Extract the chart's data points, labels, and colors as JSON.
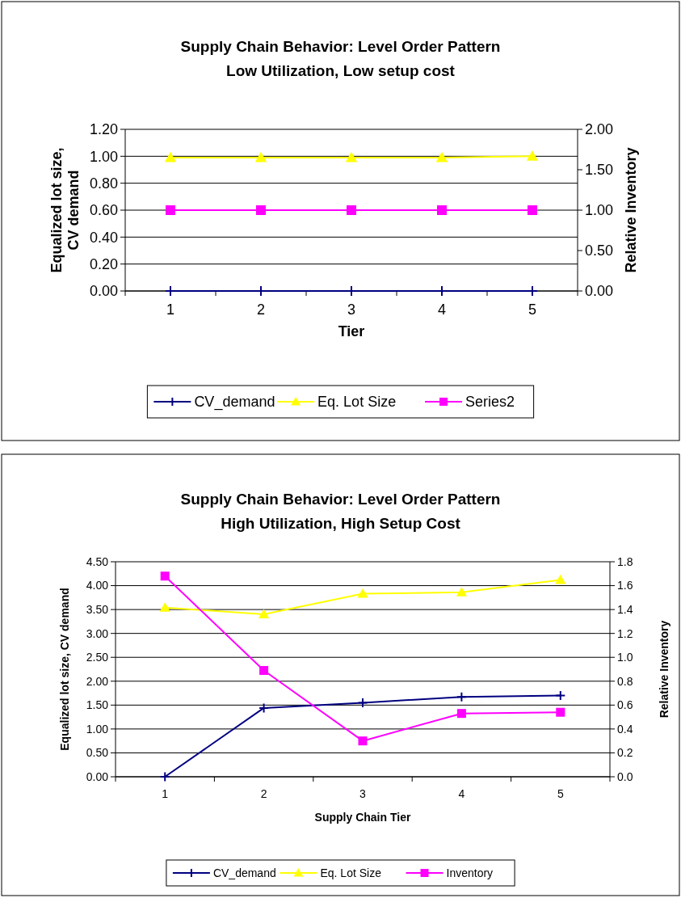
{
  "chart_data": [
    {
      "type": "line",
      "title": "Supply Chain Behavior: Level Order Pattern",
      "subtitle": "Low Utilization, Low setup cost",
      "xlabel": "Tier",
      "ylabel": "Equalized lot size, CV demand",
      "y2label": "Relative Inventory",
      "categories": [
        "1",
        "2",
        "3",
        "4",
        "5"
      ],
      "series": [
        {
          "name": "CV_demand",
          "color": "#000080",
          "marker": "cross",
          "values": [
            0,
            0,
            0,
            0,
            0
          ]
        },
        {
          "name": "Eq. Lot Size",
          "color": "#ffff00",
          "marker": "triangle",
          "values": [
            0.99,
            0.99,
            0.99,
            0.99,
            1.0
          ]
        },
        {
          "name": "Series2",
          "color": "#ff00ff",
          "marker": "square",
          "axis": "y2",
          "values": [
            1.0,
            1.0,
            1.0,
            1.0,
            1.0
          ]
        }
      ],
      "ylim": [
        0,
        1.2
      ],
      "yticks": [
        {
          "value": 0,
          "label": "0.00"
        },
        {
          "value": 0.2,
          "label": "0.20"
        },
        {
          "value": 0.4,
          "label": "0.40"
        },
        {
          "value": 0.6,
          "label": "0.60"
        },
        {
          "value": 0.8,
          "label": "0.80"
        },
        {
          "value": 1,
          "label": "1.00"
        },
        {
          "value": 1.2,
          "label": "1.20"
        }
      ],
      "y2lim": [
        0,
        2
      ],
      "y2ticks": [
        {
          "value": 0,
          "label": "0.00"
        },
        {
          "value": 0.5,
          "label": "0.50"
        },
        {
          "value": 1,
          "label": "1.00"
        },
        {
          "value": 1.5,
          "label": "1.50"
        },
        {
          "value": 2,
          "label": "2.00"
        }
      ],
      "grid": "y",
      "legend": "bottom"
    },
    {
      "type": "line",
      "title": "Supply Chain Behavior: Level Order Pattern",
      "subtitle": "High Utilization, High Setup Cost",
      "xlabel": "Supply Chain Tier",
      "ylabel": "Equalized lot size, CV demand",
      "y2label": "Relative Inventory",
      "categories": [
        "1",
        "2",
        "3",
        "4",
        "5"
      ],
      "series": [
        {
          "name": "CV_demand",
          "color": "#000080",
          "marker": "cross",
          "values": [
            0,
            1.44,
            1.55,
            1.67,
            1.7
          ]
        },
        {
          "name": "Eq. Lot Size",
          "color": "#ffff00",
          "marker": "triangle",
          "values": [
            3.54,
            3.4,
            3.83,
            3.86,
            4.12
          ]
        },
        {
          "name": "Inventory",
          "color": "#ff00ff",
          "marker": "square",
          "axis": "y2",
          "values": [
            1.68,
            0.89,
            0.3,
            0.53,
            0.54
          ]
        }
      ],
      "ylim": [
        0,
        4.5
      ],
      "yticks": [
        {
          "value": 0,
          "label": "0.00"
        },
        {
          "value": 0.5,
          "label": "0.50"
        },
        {
          "value": 1,
          "label": "1.00"
        },
        {
          "value": 1.5,
          "label": "1.50"
        },
        {
          "value": 2,
          "label": "2.00"
        },
        {
          "value": 2.5,
          "label": "2.50"
        },
        {
          "value": 3,
          "label": "3.00"
        },
        {
          "value": 3.5,
          "label": "3.50"
        },
        {
          "value": 4,
          "label": "4.00"
        },
        {
          "value": 4.5,
          "label": "4.50"
        }
      ],
      "y2lim": [
        0,
        1.8
      ],
      "y2ticks": [
        {
          "value": 0,
          "label": "0.0"
        },
        {
          "value": 0.2,
          "label": "0.2"
        },
        {
          "value": 0.4,
          "label": "0.4"
        },
        {
          "value": 0.6,
          "label": "0.6"
        },
        {
          "value": 0.8,
          "label": "0.8"
        },
        {
          "value": 1,
          "label": "1.0"
        },
        {
          "value": 1.2,
          "label": "1.2"
        },
        {
          "value": 1.4,
          "label": "1.4"
        },
        {
          "value": 1.6,
          "label": "1.6"
        },
        {
          "value": 1.8,
          "label": "1.8"
        }
      ],
      "grid": "y",
      "legend": "bottom"
    }
  ]
}
